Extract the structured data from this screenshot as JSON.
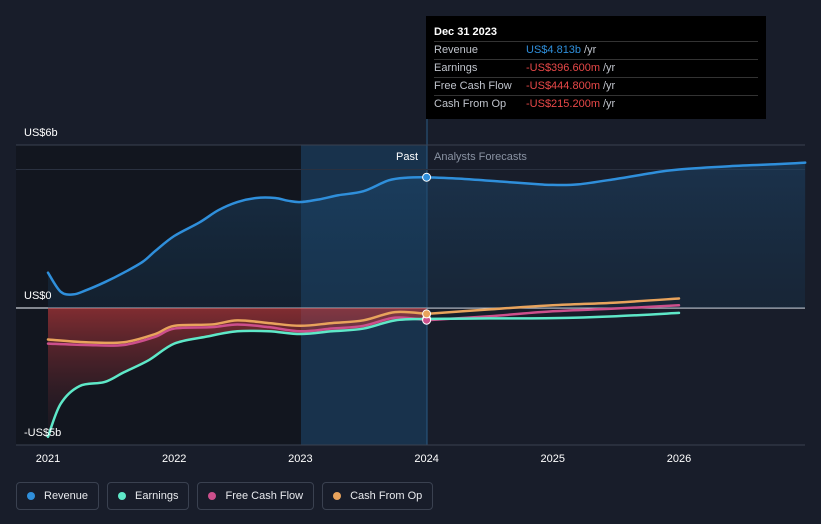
{
  "chart_data": {
    "type": "line",
    "title": "",
    "xlabel": "",
    "ylabel": "",
    "x_ticks": [
      "2021",
      "2022",
      "2023",
      "2024",
      "2025",
      "2026"
    ],
    "y_ticks": [
      {
        "value": 6,
        "label": "US$6b"
      },
      {
        "value": 0,
        "label": "US$0"
      },
      {
        "value": -5,
        "label": "-US$5b"
      }
    ],
    "xlim": [
      2021,
      2027.0
    ],
    "ylim": [
      -5,
      6
    ],
    "past_label": "Past",
    "forecast_label": "Analysts Forecasts",
    "forecast_start": 2024.0,
    "series": [
      {
        "name": "Revenue",
        "color": "#2f8fdb",
        "x": [
          2021.0,
          2021.1,
          2021.2,
          2021.3,
          2021.45,
          2021.6,
          2021.75,
          2021.85,
          2022.0,
          2022.2,
          2022.35,
          2022.5,
          2022.65,
          2022.8,
          2022.9,
          2023.0,
          2023.15,
          2023.3,
          2023.5,
          2023.7,
          2023.85,
          2024.0
        ],
        "y": [
          1.3,
          0.6,
          0.5,
          0.65,
          0.95,
          1.3,
          1.7,
          2.1,
          2.65,
          3.15,
          3.6,
          3.9,
          4.05,
          4.05,
          3.95,
          3.9,
          4.0,
          4.15,
          4.3,
          4.7,
          4.8,
          4.813
        ]
      },
      {
        "name": "Revenue forecast",
        "color": "#2f8fdb",
        "x": [
          2024.0,
          2024.3,
          2024.6,
          2024.9,
          2025.0,
          2025.2,
          2025.5,
          2025.8,
          2026.0,
          2026.4,
          2026.8,
          2027.0
        ],
        "y": [
          4.813,
          4.75,
          4.65,
          4.55,
          4.53,
          4.55,
          4.75,
          4.98,
          5.1,
          5.22,
          5.3,
          5.35
        ]
      },
      {
        "name": "Earnings",
        "color": "#5ee8c8",
        "x": [
          2021.0,
          2021.1,
          2021.25,
          2021.45,
          2021.6,
          2021.8,
          2022.0,
          2022.25,
          2022.5,
          2022.75,
          2023.0,
          2023.25,
          2023.5,
          2023.75,
          2024.0
        ],
        "y": [
          -4.7,
          -3.5,
          -2.85,
          -2.7,
          -2.35,
          -1.9,
          -1.3,
          -1.05,
          -0.85,
          -0.85,
          -0.95,
          -0.85,
          -0.75,
          -0.45,
          -0.397
        ]
      },
      {
        "name": "Earnings forecast",
        "color": "#5ee8c8",
        "x": [
          2024.0,
          2024.5,
          2025.0,
          2025.5,
          2026.0
        ],
        "y": [
          -0.397,
          -0.38,
          -0.37,
          -0.3,
          -0.18
        ]
      },
      {
        "name": "Free Cash Flow",
        "color": "#cc4f8c",
        "x": [
          2021.0,
          2021.3,
          2021.6,
          2021.85,
          2022.0,
          2022.3,
          2022.5,
          2022.75,
          2023.0,
          2023.25,
          2023.5,
          2023.75,
          2024.0
        ],
        "y": [
          -1.3,
          -1.35,
          -1.35,
          -1.05,
          -0.75,
          -0.7,
          -0.6,
          -0.7,
          -0.85,
          -0.75,
          -0.65,
          -0.35,
          -0.445
        ]
      },
      {
        "name": "Free Cash Flow forecast",
        "color": "#cc4f8c",
        "x": [
          2024.0,
          2024.5,
          2025.0,
          2025.5,
          2026.0
        ],
        "y": [
          -0.445,
          -0.3,
          -0.12,
          -0.02,
          0.1
        ]
      },
      {
        "name": "Cash From Op",
        "color": "#e8a35c",
        "x": [
          2021.0,
          2021.3,
          2021.6,
          2021.85,
          2022.0,
          2022.3,
          2022.5,
          2022.75,
          2023.0,
          2023.25,
          2023.5,
          2023.75,
          2024.0
        ],
        "y": [
          -1.15,
          -1.25,
          -1.25,
          -0.95,
          -0.65,
          -0.6,
          -0.45,
          -0.55,
          -0.65,
          -0.55,
          -0.45,
          -0.15,
          -0.215
        ]
      },
      {
        "name": "Cash From Op forecast",
        "color": "#e8a35c",
        "x": [
          2024.0,
          2024.5,
          2025.0,
          2025.5,
          2026.0
        ],
        "y": [
          -0.215,
          -0.05,
          0.1,
          0.2,
          0.35
        ]
      }
    ]
  },
  "tooltip": {
    "date": "Dec 31 2023",
    "rows": [
      {
        "label": "Revenue",
        "value": "US$4.813b",
        "unit": "/yr",
        "color": "#2f8fdb"
      },
      {
        "label": "Earnings",
        "value": "-US$396.600m",
        "unit": "/yr",
        "color": "#e84848"
      },
      {
        "label": "Free Cash Flow",
        "value": "-US$444.800m",
        "unit": "/yr",
        "color": "#e84848"
      },
      {
        "label": "Cash From Op",
        "value": "-US$215.200m",
        "unit": "/yr",
        "color": "#e84848"
      }
    ]
  },
  "legend": [
    {
      "label": "Revenue",
      "color": "#2f8fdb"
    },
    {
      "label": "Earnings",
      "color": "#5ee8c8"
    },
    {
      "label": "Free Cash Flow",
      "color": "#cc4f8c"
    },
    {
      "label": "Cash From Op",
      "color": "#e8a35c"
    }
  ]
}
